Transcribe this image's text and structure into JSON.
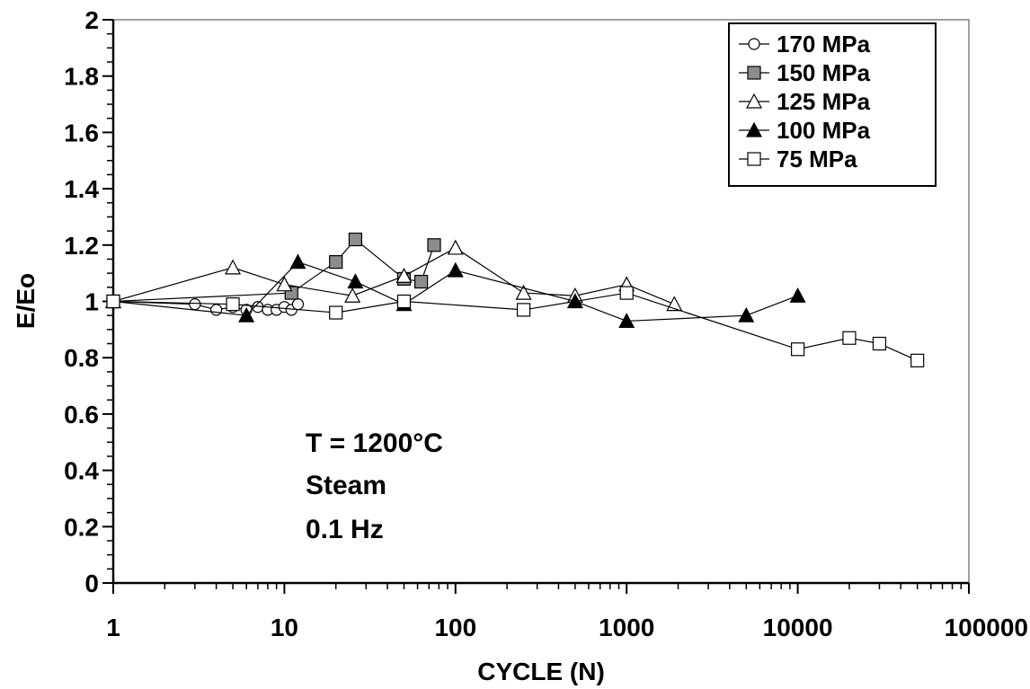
{
  "chart_data": {
    "type": "scatter",
    "title": "",
    "xlabel": "CYCLE (N)",
    "ylabel": "E/Eo",
    "xscale": "log",
    "xlim": [
      1,
      100000
    ],
    "ylim": [
      0,
      2
    ],
    "x_ticks": [
      "1",
      "10",
      "100",
      "1000",
      "10000",
      "100000"
    ],
    "y_ticks": [
      "0",
      "0.2",
      "0.4",
      "0.6",
      "0.8",
      "1",
      "1.2",
      "1.4",
      "1.6",
      "1.8",
      "2"
    ],
    "grid": false,
    "legend_position": "top-right",
    "annotations": [
      "T = 1200°C",
      "Steam",
      "0.1 Hz"
    ],
    "series": [
      {
        "name": "170 MPa",
        "marker": "circle-open",
        "x": [
          1,
          3,
          4,
          5,
          6,
          7,
          8,
          9,
          10,
          11,
          12
        ],
        "y": [
          1.0,
          0.99,
          0.97,
          0.98,
          0.97,
          0.98,
          0.97,
          0.97,
          0.98,
          0.97,
          0.99
        ]
      },
      {
        "name": "150 MPa",
        "marker": "square-gray",
        "x": [
          1,
          11,
          20,
          26,
          50,
          63,
          75
        ],
        "y": [
          1.0,
          1.03,
          1.14,
          1.22,
          1.08,
          1.07,
          1.2
        ]
      },
      {
        "name": "125 MPa",
        "marker": "triangle-open",
        "x": [
          1,
          5,
          10,
          25,
          50,
          100,
          250,
          500,
          1000,
          1900
        ],
        "y": [
          1.0,
          1.12,
          1.06,
          1.02,
          1.09,
          1.19,
          1.03,
          1.02,
          1.06,
          0.99
        ]
      },
      {
        "name": "100 MPa",
        "marker": "triangle-filled",
        "x": [
          1,
          6,
          12,
          26,
          50,
          100,
          500,
          1000,
          5000,
          10000
        ],
        "y": [
          1.0,
          0.95,
          1.14,
          1.07,
          0.99,
          1.11,
          1.0,
          0.93,
          0.95,
          1.02
        ]
      },
      {
        "name": "75 MPa",
        "marker": "square-open",
        "x": [
          1,
          5,
          20,
          50,
          250,
          1000,
          10000,
          20000,
          30000,
          50000
        ],
        "y": [
          1.0,
          0.99,
          0.96,
          1.0,
          0.97,
          1.03,
          0.83,
          0.87,
          0.85,
          0.79
        ]
      }
    ]
  }
}
